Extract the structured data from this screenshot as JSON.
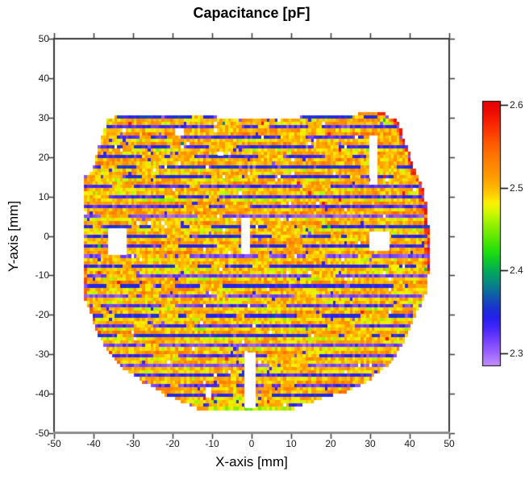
{
  "chart_data": {
    "type": "heatmap",
    "title": "Capacitance [pF]",
    "xlabel": "X-axis [mm]",
    "ylabel": "Y-axis [mm]",
    "xlim": [
      -50,
      50
    ],
    "ylim": [
      -50,
      50
    ],
    "xticks": [
      -50,
      -40,
      -30,
      -20,
      -10,
      0,
      10,
      20,
      30,
      40,
      50
    ],
    "yticks": [
      50,
      40,
      30,
      20,
      10,
      0,
      -10,
      -20,
      -30,
      -40,
      -50
    ],
    "grid": false,
    "summary": "Wafer capacitance map: round wafer (diameter ~88 mm, flat top edge at y=30 mm) scanned in horizontal stripes. Repeating vertical pattern of wide orange bands (~2.50-2.52 pF) and thin blue bands (~2.33-2.34 pF); sporadic yellow (~2.47), green (~2.41), teal (~2.38) and red (~2.58) cells; red cells along the right wafer edge; yellow rows at the very bottom; white rectangular regions are unmeasured sites.",
    "colorbar": {
      "min": 2.285,
      "max": 2.605,
      "ticks": [
        2.6,
        2.5,
        2.4,
        2.3
      ],
      "tick_labels": [
        "2.6",
        "2.5",
        "2.4",
        "2.3"
      ]
    },
    "colormap_stops": [
      [
        2.285,
        "#c08cff"
      ],
      [
        2.3,
        "#9b63ff"
      ],
      [
        2.315,
        "#7440ff"
      ],
      [
        2.33,
        "#4426f8"
      ],
      [
        2.342,
        "#2520ee"
      ],
      [
        2.355,
        "#1a35cf"
      ],
      [
        2.37,
        "#0f5fa8"
      ],
      [
        2.385,
        "#078b80"
      ],
      [
        2.398,
        "#02a75e"
      ],
      [
        2.41,
        "#0bc431"
      ],
      [
        2.422,
        "#1ede0e"
      ],
      [
        2.44,
        "#5ee800"
      ],
      [
        2.458,
        "#9ef200"
      ],
      [
        2.472,
        "#d8f800"
      ],
      [
        2.482,
        "#fdf000"
      ],
      [
        2.492,
        "#ffcf00"
      ],
      [
        2.502,
        "#ffb300"
      ],
      [
        2.512,
        "#ff9e00"
      ],
      [
        2.525,
        "#ff8a00"
      ],
      [
        2.54,
        "#ff7400"
      ],
      [
        2.558,
        "#ff5000"
      ],
      [
        2.575,
        "#fb2b00"
      ],
      [
        2.59,
        "#f01000"
      ],
      [
        2.605,
        "#e40000"
      ]
    ],
    "colors": {
      "background": "#ffffff",
      "frame": "#3a3a3a",
      "bottom_axis": "#8c8c8c",
      "missing": "#ffffff"
    },
    "generator": {
      "seed": 7,
      "cell_w_mm": 0.7,
      "row_h_mm": 0.84,
      "row_top_center_mm": 31.0,
      "col_start_mm": -42.05,
      "col_count": 125,
      "blue_row_mod": 3,
      "blue_row_index": 1,
      "orange_base": 2.502,
      "orange_row_jitter": 0.022,
      "orange_cell_jitter": 0.055,
      "blue_base": 2.336,
      "blue_row_jitter": 0.02,
      "blue_cell_jitter": 0.035,
      "violet_row_prob": 0.2,
      "violet_row_base": 2.318,
      "p_yellow_cell": 0.025,
      "yellow_value": 2.468,
      "p_blue_in_orange": 0.012,
      "p_violet_in_orange": 0.004,
      "p_red_in_orange": 0.003,
      "red_value": 2.575,
      "p_white": 0.007,
      "p_orange_run_in_blue": 0.04,
      "orange_run_value": 2.5,
      "p_violet_in_blue": 0.05,
      "violet_value": 2.308,
      "right_edge_red_ymin": -8.5,
      "right_edge_red_ymax": 31.6,
      "right_edge_red_value": 2.565,
      "left_edge_warm_ymin": -40.0,
      "left_edge_warm_ymax": 18.0,
      "left_edge_warm_prob": 0.45,
      "left_edge_warm_value": 2.535,
      "bottom_yellow_y1": -40.5,
      "bottom_yellow_base1": 2.492,
      "bottom_yellow_y2": -43.2,
      "bottom_yellow_base2": 2.468,
      "wave_amp": 0.012
    },
    "top_bump_row": {
      "x1": 27.5,
      "x2": 33.6,
      "value": 2.52,
      "red_from_x": 32.1,
      "red_value": 2.58
    },
    "top_row_segments": [
      [
        -34.3,
        -22.0
      ],
      [
        -21.2,
        -9.2
      ],
      [
        12.9,
        34.4
      ]
    ],
    "outline_anchors": [
      [
        30.2,
        -34.3,
        34.4
      ],
      [
        29.3,
        -36.2,
        36.6
      ],
      [
        26.8,
        -37.0,
        37.4
      ],
      [
        24.3,
        -37.8,
        38.3
      ],
      [
        21.8,
        -38.5,
        39.2
      ],
      [
        19.3,
        -39.2,
        40.1
      ],
      [
        16.8,
        -40.1,
        41.1
      ],
      [
        15.1,
        -42.2,
        41.9
      ],
      [
        12.6,
        -42.3,
        42.9
      ],
      [
        10.1,
        -42.4,
        43.5
      ],
      [
        5.0,
        -42.4,
        44.2
      ],
      [
        0.0,
        -42.4,
        44.6
      ],
      [
        -8.0,
        -42.4,
        44.6
      ],
      [
        -12.6,
        -42.2,
        44.1
      ],
      [
        -15.1,
        -41.9,
        43.6
      ],
      [
        -17.6,
        -41.4,
        42.6
      ],
      [
        -19.3,
        -40.5,
        41.5
      ],
      [
        -21.8,
        -39.8,
        40.4
      ],
      [
        -24.3,
        -38.8,
        39.4
      ],
      [
        -26.8,
        -37.6,
        38.2
      ],
      [
        -29.3,
        -36.1,
        36.8
      ],
      [
        -31.8,
        -34.0,
        35.0
      ],
      [
        -34.3,
        -31.3,
        32.4
      ],
      [
        -36.8,
        -27.6,
        29.0
      ],
      [
        -39.3,
        -22.9,
        24.3
      ],
      [
        -40.9,
        -20.8,
        18.8
      ],
      [
        -42.2,
        -17.0,
        14.7
      ],
      [
        -43.4,
        -13.9,
        10.6
      ],
      [
        -44.0,
        -9.0,
        10.2
      ]
    ],
    "holes": [
      [
        -36.4,
        -31.7,
        -4.9,
        1.7
      ],
      [
        -2.6,
        -0.4,
        -4.3,
        4.5
      ],
      [
        29.7,
        34.8,
        -3.5,
        1.2
      ],
      [
        29.9,
        31.6,
        12.9,
        25.5
      ],
      [
        -1.7,
        1.0,
        -43.6,
        -29.5
      ],
      [
        -11.7,
        -10.3,
        -41.0,
        -38.4
      ],
      [
        -19.2,
        -17.1,
        25.6,
        27.0
      ],
      [
        -8.6,
        -7.1,
        20.3,
        21.2
      ]
    ],
    "extra_segments": [
      {
        "y": -43.6,
        "x1": -13.9,
        "x2": -11.4,
        "value": 2.515
      }
    ],
    "special_cells": {
      "green": {
        "value": 2.413,
        "points": [
          [
            -38.55,
            -2.2
          ],
          [
            19.25,
            2.4
          ],
          [
            33.55,
            29.3
          ],
          [
            44.35,
            -8.1
          ]
        ]
      },
      "teal": {
        "value": 2.383,
        "points": [
          [
            -6.95,
            28.9
          ],
          [
            -17.55,
            23.4
          ],
          [
            30.85,
            14.2
          ]
        ]
      },
      "red": {
        "value": 2.588,
        "points": [
          [
            33.65,
            15.1
          ],
          [
            44.7,
            -1.9
          ],
          [
            -30.5,
            28.5
          ]
        ]
      },
      "blue": {
        "value": 2.335,
        "points": [
          [
            30.15,
            14.2
          ],
          [
            30.85,
            13.9
          ]
        ]
      }
    }
  }
}
